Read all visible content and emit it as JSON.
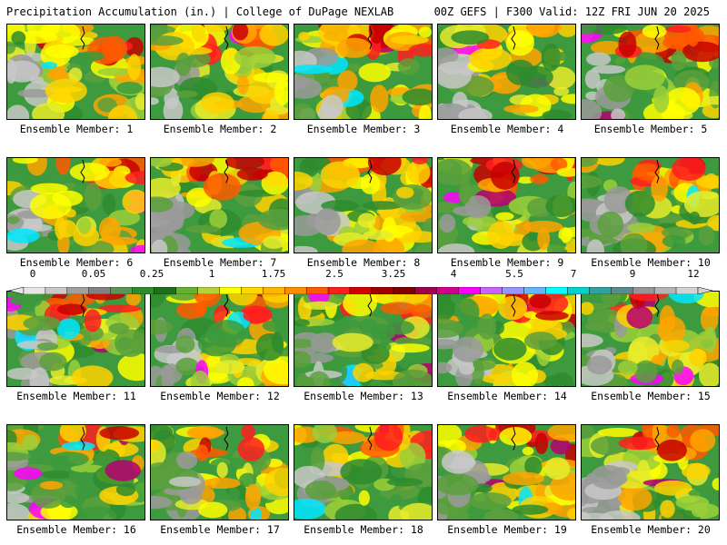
{
  "header": {
    "left": "Precipitation Accumulation (in.) | College of DuPage NEXLAB",
    "right": "00Z GEFS | F300 Valid: 12Z FRI JUN 20 2025"
  },
  "panels": [
    {
      "label": "Ensemble Member: 1"
    },
    {
      "label": "Ensemble Member: 2"
    },
    {
      "label": "Ensemble Member: 3"
    },
    {
      "label": "Ensemble Member: 4"
    },
    {
      "label": "Ensemble Member: 5"
    },
    {
      "label": "Ensemble Member: 6"
    },
    {
      "label": "Ensemble Member: 7"
    },
    {
      "label": "Ensemble Member: 8"
    },
    {
      "label": "Ensemble Member: 9"
    },
    {
      "label": "Ensemble Member: 10"
    },
    {
      "label": "Ensemble Member: 11"
    },
    {
      "label": "Ensemble Member: 12"
    },
    {
      "label": "Ensemble Member: 13"
    },
    {
      "label": "Ensemble Member: 14"
    },
    {
      "label": "Ensemble Member: 15"
    },
    {
      "label": "Ensemble Member: 16"
    },
    {
      "label": "Ensemble Member: 17"
    },
    {
      "label": "Ensemble Member: 18"
    },
    {
      "label": "Ensemble Member: 19"
    },
    {
      "label": "Ensemble Member: 20"
    }
  ],
  "colorbar": {
    "labels": [
      "0",
      "0.05",
      "0.25",
      "1",
      "1.75",
      "2.5",
      "3.25",
      "4",
      "5.5",
      "7",
      "9",
      "12"
    ],
    "colors": [
      "#e6e6e6",
      "#c8c8c8",
      "#a0a0a0",
      "#828282",
      "#5a965a",
      "#2e8b2e",
      "#1e6e1e",
      "#66b032",
      "#b4d23c",
      "#ffff00",
      "#ffd700",
      "#ffb400",
      "#ff8c00",
      "#ff5a00",
      "#ff1e1e",
      "#d20000",
      "#a00000",
      "#800000",
      "#a00050",
      "#d2008c",
      "#ff00ff",
      "#c864ff",
      "#9696ff",
      "#64b4ff",
      "#00ffff",
      "#00d2d2",
      "#32a0a0",
      "#5a8c8c",
      "#969696",
      "#b4b4b4",
      "#d2d2d2"
    ]
  }
}
